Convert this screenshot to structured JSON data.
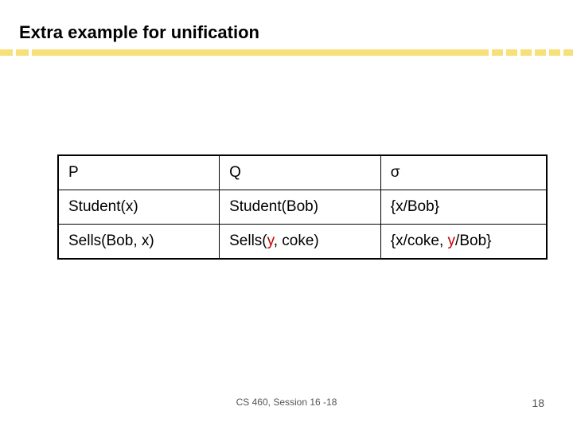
{
  "title": "Extra example for unification",
  "table": {
    "columns": [
      "P",
      "Q",
      "σ"
    ],
    "rows": [
      {
        "p": "Student(x)",
        "q": "Student(Bob)",
        "sigma": "{x/Bob}"
      },
      {
        "p": "Sells(Bob, x)",
        "q_pre": "Sells(",
        "q_var": "y",
        "q_post": ", coke)",
        "sigma_pre": "{x/coke, ",
        "sigma_var": "y",
        "sigma_post": "/Bob}"
      }
    ]
  },
  "footer": {
    "center": "CS 460, Session 16 -18",
    "page": "18"
  },
  "colors": {
    "var_highlight": "#c00000",
    "underline": "#f7e07a",
    "background": "#ffffff",
    "text": "#000000",
    "footer_text": "#555555"
  }
}
